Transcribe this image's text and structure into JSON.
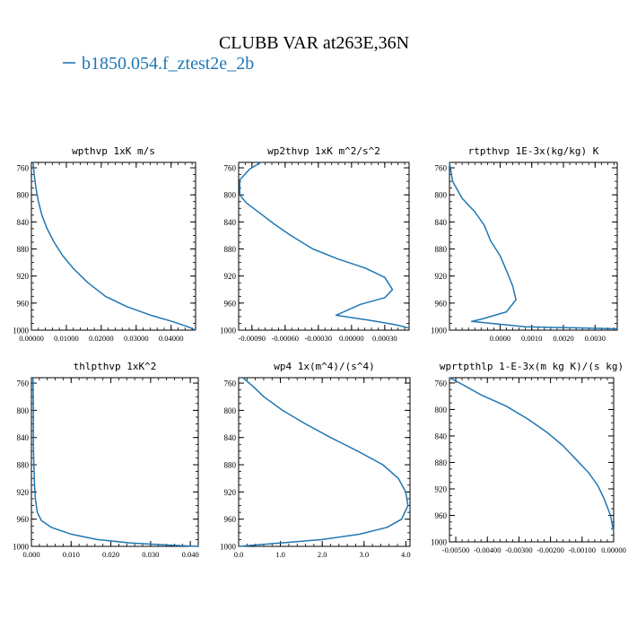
{
  "figure": {
    "title": "CLUBB VAR at263E,36N",
    "legend": {
      "label": "b1850.054.f_ztest2e_2b",
      "color": "#1f77b4",
      "placement": "top-left"
    }
  },
  "chart_data": [
    {
      "type": "line",
      "title": "wpthvp  1xK m/s",
      "xlim": [
        0,
        0.047
      ],
      "ylim": [
        1000,
        752
      ],
      "xticks": [
        "0.00000",
        "0.01000",
        "0.02000",
        "0.03000",
        "0.04000"
      ],
      "xtick_values": [
        0,
        0.01,
        0.02,
        0.03,
        0.04
      ],
      "yticks": [
        "760",
        "800",
        "840",
        "880",
        "920",
        "960",
        "1000"
      ],
      "ytick_values": [
        760,
        800,
        840,
        880,
        920,
        960,
        1000
      ],
      "series": [
        {
          "x": [
            0.0005,
            0.0008,
            0.0013,
            0.002,
            0.003,
            0.0045,
            0.0065,
            0.009,
            0.0122,
            0.0162,
            0.0212,
            0.0272,
            0.0342,
            0.0402,
            0.0448,
            0.047
          ],
          "y": [
            752,
            770,
            790,
            810,
            830,
            850,
            870,
            890,
            910,
            930,
            950,
            965,
            978,
            987,
            995,
            1000
          ]
        }
      ]
    },
    {
      "type": "line",
      "title": "wp2thvp  1xK m^2/s^2",
      "xlim": [
        -0.00102,
        0.00052
      ],
      "ylim": [
        1000,
        752
      ],
      "xticks": [
        "-0.00090",
        "-0.00060",
        "-0.00030",
        "0.00000",
        "0.00030"
      ],
      "xtick_values": [
        -0.0009,
        -0.0006,
        -0.0003,
        0,
        0.0003
      ],
      "yticks": [
        "760",
        "800",
        "840",
        "880",
        "920",
        "960",
        "1000"
      ],
      "ytick_values": [
        760,
        800,
        840,
        880,
        920,
        960,
        1000
      ],
      "series": [
        {
          "x": [
            -0.00082,
            -0.00092,
            -0.00101,
            -0.00101,
            -0.00095,
            -0.00082,
            -0.0007,
            -0.00055,
            -0.00035,
            -0.00012,
            0.00012,
            0.0003,
            0.00037,
            0.0003,
            8e-05,
            -0.00014,
            0.00015,
            0.0004,
            0.00052
          ],
          "y": [
            752,
            762,
            778,
            800,
            812,
            828,
            843,
            860,
            880,
            895,
            908,
            922,
            940,
            952,
            962,
            978,
            985,
            992,
            997
          ]
        }
      ]
    },
    {
      "type": "line",
      "title": "rtpthvp  1E-3x(kg/kg) K",
      "xlim": [
        -0.0016,
        0.0037
      ],
      "ylim": [
        1000,
        752
      ],
      "xticks": [
        "0.0000",
        "0.0010",
        "0.0020",
        "0.0030"
      ],
      "xtick_values": [
        0,
        0.001,
        0.002,
        0.003
      ],
      "yticks": [
        "760",
        "800",
        "840",
        "880",
        "920",
        "960",
        "1000"
      ],
      "ytick_values": [
        760,
        800,
        840,
        880,
        920,
        960,
        1000
      ],
      "series": [
        {
          "x": [
            -0.0016,
            -0.0015,
            -0.0012,
            -0.0008,
            -0.0005,
            -0.0003,
            0,
            0.0002,
            0.0004,
            0.0005,
            0.0002,
            -0.0006,
            -0.0009,
            0.0008,
            0.0037
          ],
          "y": [
            752,
            780,
            805,
            825,
            845,
            868,
            890,
            912,
            935,
            955,
            973,
            984,
            987,
            995,
            998
          ]
        }
      ]
    },
    {
      "type": "line",
      "title": "thlpthvp  1xK^2",
      "xlim": [
        0,
        0.042
      ],
      "ylim": [
        1000,
        752
      ],
      "xticks": [
        "0.000",
        "0.010",
        "0.020",
        "0.030",
        "0.040"
      ],
      "xtick_values": [
        0,
        0.01,
        0.02,
        0.03,
        0.04
      ],
      "yticks": [
        "760",
        "800",
        "840",
        "880",
        "920",
        "960",
        "1000"
      ],
      "ytick_values": [
        760,
        800,
        840,
        880,
        920,
        960,
        1000
      ],
      "series": [
        {
          "x": [
            0.0004,
            0.0005,
            0.0005,
            0.0006,
            0.0008,
            0.001,
            0.0015,
            0.0025,
            0.005,
            0.01,
            0.0165,
            0.025,
            0.034,
            0.042
          ],
          "y": [
            752,
            800,
            850,
            880,
            910,
            930,
            950,
            962,
            972,
            982,
            990,
            995,
            998,
            1000
          ]
        }
      ]
    },
    {
      "type": "line",
      "title": "wp4  1x(m^4)/(s^4)",
      "xlim": [
        0,
        4.1
      ],
      "ylim": [
        1000,
        752
      ],
      "xticks": [
        "0.0",
        "1.0",
        "2.0",
        "3.0",
        "4.0"
      ],
      "xtick_values": [
        0,
        1,
        2,
        3,
        4
      ],
      "yticks": [
        "760",
        "800",
        "840",
        "880",
        "920",
        "960",
        "1000"
      ],
      "ytick_values": [
        760,
        800,
        840,
        880,
        920,
        960,
        1000
      ],
      "series": [
        {
          "x": [
            0.1,
            0.35,
            0.6,
            1.05,
            1.6,
            2.2,
            2.85,
            3.45,
            3.82,
            4.0,
            4.05,
            3.9,
            3.55,
            2.9,
            2.0,
            1.0,
            0.4,
            0
          ],
          "y": [
            752,
            765,
            780,
            800,
            820,
            840,
            860,
            880,
            900,
            920,
            940,
            960,
            972,
            982,
            990,
            995,
            998,
            1000
          ]
        }
      ]
    },
    {
      "type": "line",
      "title": "wprtpthlp  1-E-3x(m kg K)/(s kg)",
      "xlim": [
        -0.0052,
        0
      ],
      "ylim": [
        1000,
        752
      ],
      "xticks": [
        "-0.00500",
        "-0.00400",
        "-0.00300",
        "-0.00200",
        "-0.00100",
        "0.00000"
      ],
      "xtick_values": [
        -0.005,
        -0.004,
        -0.003,
        -0.002,
        -0.001,
        0
      ],
      "yticks": [
        "760",
        "800",
        "840",
        "880",
        "920",
        "960",
        "1000"
      ],
      "ytick_values": [
        760,
        800,
        840,
        880,
        920,
        960,
        1000
      ],
      "series": [
        {
          "x": [
            -0.0052,
            -0.0048,
            -0.0042,
            -0.0034,
            -0.0027,
            -0.0021,
            -0.0016,
            -0.0012,
            -0.0008,
            -0.0005,
            -0.0003,
            -0.0001,
            0
          ],
          "y": [
            752,
            762,
            778,
            795,
            815,
            835,
            855,
            875,
            895,
            915,
            935,
            960,
            985
          ]
        }
      ]
    }
  ]
}
